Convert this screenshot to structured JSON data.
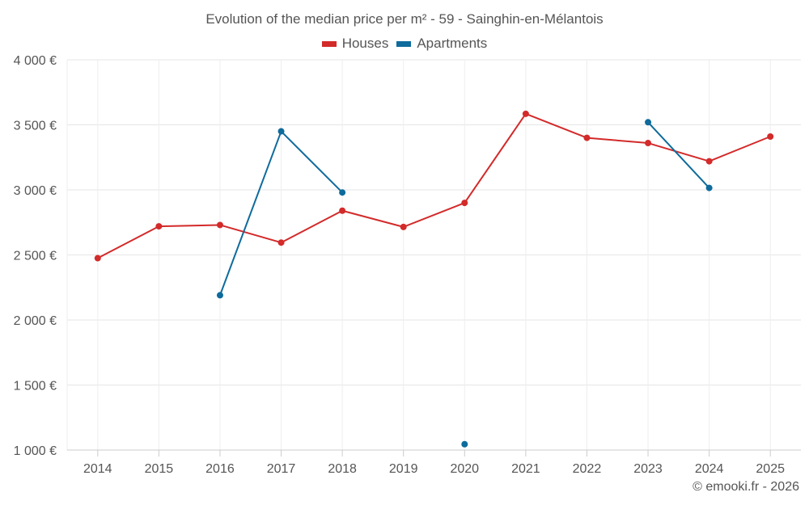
{
  "chart_data": {
    "type": "line",
    "title": "Evolution of the median price per m² - 59 - Sainghin-en-Mélantois",
    "xlabel": "",
    "ylabel": "",
    "categories": [
      "2014",
      "2015",
      "2016",
      "2017",
      "2018",
      "2019",
      "2020",
      "2021",
      "2022",
      "2023",
      "2024",
      "2025"
    ],
    "ylim": [
      1000,
      4000
    ],
    "yticks": [
      1000,
      1500,
      2000,
      2500,
      3000,
      3500,
      4000
    ],
    "ytick_labels": [
      "1 000 €",
      "1 500 €",
      "2 000 €",
      "2 500 €",
      "3 000 €",
      "3 500 €",
      "4 000 €"
    ],
    "grid": true,
    "legend_position": "top-center",
    "series": [
      {
        "name": "Houses",
        "color": "#d32a2a",
        "values": [
          2475,
          2720,
          2730,
          2595,
          2840,
          2715,
          2900,
          3585,
          3400,
          3360,
          3220,
          3410
        ]
      },
      {
        "name": "Apartments",
        "color": "#0e6b9c",
        "values": [
          null,
          null,
          2190,
          3450,
          2980,
          null,
          1045,
          null,
          null,
          3520,
          3015,
          null
        ]
      }
    ]
  },
  "footer": {
    "copyright": "© emooki.fr - 2026"
  }
}
